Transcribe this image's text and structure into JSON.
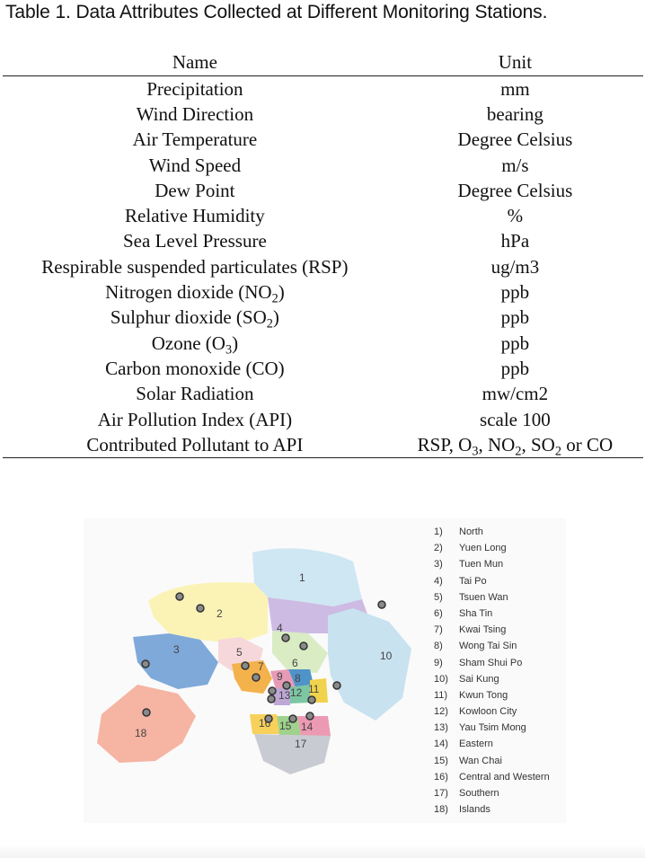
{
  "caption": "Table 1. Data Attributes Collected at Different Monitoring Stations.",
  "table": {
    "headers": [
      "Name",
      "Unit"
    ],
    "rows": [
      [
        "Precipitation",
        "mm"
      ],
      [
        "Wind Direction",
        "bearing"
      ],
      [
        "Air Temperature",
        "Degree Celsius"
      ],
      [
        "Wind Speed",
        "m/s"
      ],
      [
        "Dew Point",
        "Degree Celsius"
      ],
      [
        "Relative Humidity",
        "%"
      ],
      [
        "Sea Level Pressure",
        "hPa"
      ],
      [
        "Respirable suspended particulates (RSP)",
        "ug/m3"
      ],
      [
        "Nitrogen dioxide (NO<sub>2</sub>)",
        "ppb"
      ],
      [
        "Sulphur dioxide (SO<sub>2</sub>)",
        "ppb"
      ],
      [
        "Ozone (O<sub>3</sub>)",
        "ppb"
      ],
      [
        "Carbon monoxide (CO)",
        "ppb"
      ],
      [
        "Solar Radiation",
        "mw/cm2"
      ],
      [
        "Air Pollution Index (API)",
        "scale 100"
      ],
      [
        "Contributed Pollutant to API",
        "RSP, O<sub>3</sub>, NO<sub>2</sub>, SO<sub>2</sub> or CO"
      ]
    ]
  },
  "map": {
    "districts": [
      {
        "num": "1",
        "color": "#cfe6f3"
      },
      {
        "num": "2",
        "color": "#fbf3b6"
      },
      {
        "num": "3",
        "color": "#7fa9d9"
      },
      {
        "num": "4",
        "color": "#cdbbe3"
      },
      {
        "num": "5",
        "color": "#f7d8da"
      },
      {
        "num": "6",
        "color": "#d9ecc3"
      },
      {
        "num": "7",
        "color": "#f4b24c"
      },
      {
        "num": "8",
        "color": "#4f93c9"
      },
      {
        "num": "9",
        "color": "#e59bb6"
      },
      {
        "num": "10",
        "color": "#c8e2ef"
      },
      {
        "num": "11",
        "color": "#f0d24d"
      },
      {
        "num": "12",
        "color": "#7cc6a4"
      },
      {
        "num": "13",
        "color": "#bfa8d6"
      },
      {
        "num": "14",
        "color": "#ec9ab3"
      },
      {
        "num": "15",
        "color": "#9fd28c"
      },
      {
        "num": "16",
        "color": "#f7d15b"
      },
      {
        "num": "17",
        "color": "#c9cbd2"
      },
      {
        "num": "18",
        "color": "#f6b4a3"
      }
    ],
    "legend": [
      {
        "num": "1)",
        "name": "North"
      },
      {
        "num": "2)",
        "name": "Yuen Long"
      },
      {
        "num": "3)",
        "name": "Tuen Mun"
      },
      {
        "num": "4)",
        "name": "Tai Po"
      },
      {
        "num": "5)",
        "name": "Tsuen Wan"
      },
      {
        "num": "6)",
        "name": "Sha Tin"
      },
      {
        "num": "7)",
        "name": "Kwai Tsing"
      },
      {
        "num": "8)",
        "name": "Wong Tai Sin"
      },
      {
        "num": "9)",
        "name": "Sham Shui Po"
      },
      {
        "num": "10)",
        "name": "Sai Kung"
      },
      {
        "num": "11)",
        "name": "Kwun Tong"
      },
      {
        "num": "12)",
        "name": "Kowloon City"
      },
      {
        "num": "13)",
        "name": "Yau Tsim Mong"
      },
      {
        "num": "14)",
        "name": "Eastern"
      },
      {
        "num": "15)",
        "name": "Wan Chai"
      },
      {
        "num": "16)",
        "name": "Central and Western"
      },
      {
        "num": "17)",
        "name": "Southern"
      },
      {
        "num": "18)",
        "name": "Islands"
      }
    ]
  }
}
